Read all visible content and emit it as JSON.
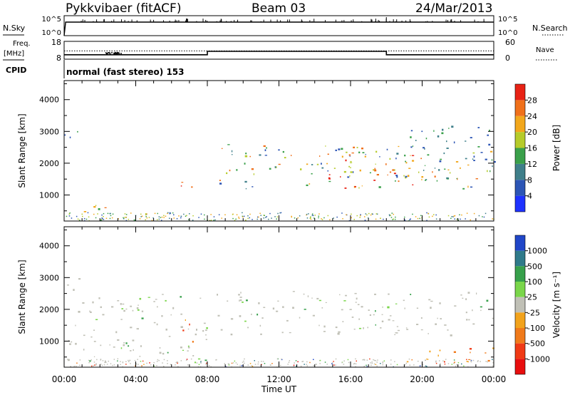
{
  "header": {
    "station": "Pykkvibaer (fitACF)",
    "beam": "Beam 03",
    "date": "24/Mar/2013"
  },
  "chart_data": [
    {
      "type": "line",
      "panel": "noise",
      "left_label": "N.Sky",
      "right_label": "N.Search",
      "left_ticks": [
        "10^5",
        "10^0"
      ],
      "right_ticks": [
        "10^5",
        "10^0"
      ],
      "series": [
        {
          "name": "N.Sky",
          "style": "solid",
          "x": [
            "00:00",
            "00:05",
            "01:00",
            "04:00",
            "08:00",
            "12:00",
            "16:00",
            "18:00",
            "20:00",
            "24:00"
          ],
          "y": [
            1,
            100000,
            100000,
            100000,
            100000,
            100000,
            100000,
            100000,
            100000,
            100000
          ]
        },
        {
          "name": "N.Search",
          "style": "dotted"
        }
      ]
    },
    {
      "type": "line",
      "panel": "frequency",
      "left_label": "Freq.",
      "left_unit": "[MHz]",
      "right_label": "Nave",
      "left_ticks": [
        "18",
        "8"
      ],
      "right_ticks": [
        "60",
        "0"
      ],
      "series": [
        {
          "name": "Freq.",
          "style": "solid",
          "x": [
            "00:00",
            "08:00",
            "08:00",
            "18:00",
            "18:00",
            "24:00"
          ],
          "y": [
            10.5,
            10.5,
            12.4,
            12.4,
            10.5,
            10.5
          ]
        },
        {
          "name": "Nave",
          "style": "dotted",
          "x": [
            "00:00",
            "24:00"
          ],
          "y": [
            28,
            28
          ]
        }
      ]
    },
    {
      "type": "text",
      "panel": "cpid",
      "label": "CPID",
      "value": "normal (fast stereo) 153"
    },
    {
      "type": "heatmap",
      "panel": "power",
      "ylabel": "Slant Range [km]",
      "yticks": [
        1000,
        2000,
        3000,
        4000
      ],
      "ylim": [
        180,
        4600
      ],
      "colorbar_label": "Power [dB]",
      "colorbar_ticks": [
        "4",
        "8",
        "12",
        "16",
        "20",
        "24",
        "28"
      ],
      "colorbar_colors": [
        "#1e32ff",
        "#2c55b5",
        "#3f7f8a",
        "#3aa04a",
        "#b6cb2a",
        "#f2a71c",
        "#f0701a",
        "#e82215"
      ],
      "regions": [
        {
          "t": [
            0.3,
            2.5
          ],
          "r": [
            300,
            700
          ],
          "level": "mixed"
        },
        {
          "t": [
            0.0,
            0.8
          ],
          "r": [
            2500,
            3100
          ],
          "level": "low"
        },
        {
          "t": [
            6.4,
            7.2
          ],
          "r": [
            1050,
            1800
          ],
          "level": "high"
        },
        {
          "t": [
            8.5,
            24.0
          ],
          "r": [
            1200,
            2600
          ],
          "level": "mixed"
        },
        {
          "t": [
            14.5,
            20.0
          ],
          "r": [
            1200,
            2300
          ],
          "level": "high"
        },
        {
          "t": [
            19.0,
            24.0
          ],
          "r": [
            2000,
            3200
          ],
          "level": "low"
        }
      ]
    },
    {
      "type": "heatmap",
      "panel": "velocity",
      "ylabel": "Slant Range [km]",
      "yticks": [
        1000,
        2000,
        3000,
        4000
      ],
      "ylim": [
        180,
        4600
      ],
      "xlabel": "Time UT",
      "xticks": [
        "00:00",
        "04:00",
        "08:00",
        "12:00",
        "16:00",
        "20:00",
        "00:00"
      ],
      "xlim": [
        0,
        24
      ],
      "colorbar_label": "Velocity [m s⁻¹]",
      "colorbar_ticks": [
        "1000",
        "500",
        "100",
        "25",
        "-25",
        "-100",
        "-500",
        "-1000"
      ],
      "colorbar_colors": [
        "#2046c8",
        "#2f7a8a",
        "#37a04b",
        "#7ad64a",
        "#c0c0b6",
        "#f2a31c",
        "#f07a1a",
        "#f03a15",
        "#e80e0e"
      ],
      "regions": [
        {
          "t": [
            0.0,
            8.0
          ],
          "r": [
            300,
            2500
          ],
          "level": "ground"
        },
        {
          "t": [
            0.0,
            0.8
          ],
          "r": [
            2500,
            3100
          ],
          "level": "ground"
        },
        {
          "t": [
            6.3,
            7.3
          ],
          "r": [
            1000,
            1800
          ],
          "level": "negative"
        },
        {
          "t": [
            8.5,
            24.0
          ],
          "r": [
            1200,
            2600
          ],
          "level": "ground"
        },
        {
          "t": [
            19.0,
            24.0
          ],
          "r": [
            300,
            800
          ],
          "level": "negative"
        }
      ]
    }
  ]
}
